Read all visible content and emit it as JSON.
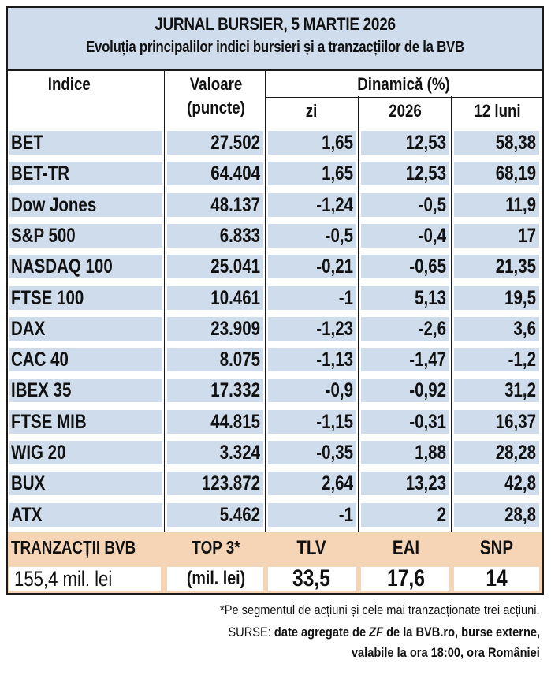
{
  "header": {
    "title": "JURNAL BURSIER, 5 MARTIE 2026",
    "subtitle": "Evoluția principalilor indici bursieri și a tranzacțiilor de la BVB"
  },
  "columns": {
    "indice": "Indice",
    "valoare_1": "Valoare",
    "valoare_2": "(puncte)",
    "dinamica": "Dinamică (%)",
    "zi": "zi",
    "an": "2026",
    "luni": "12 luni"
  },
  "rows": [
    {
      "name": "BET",
      "value": "27.502",
      "day": "1,65",
      "ytd": "12,53",
      "m12": "58,38"
    },
    {
      "name": "BET-TR",
      "value": "64.404",
      "day": "1,65",
      "ytd": "12,53",
      "m12": "68,19"
    },
    {
      "name": "Dow Jones",
      "value": "48.137",
      "day": "-1,24",
      "ytd": "-0,5",
      "m12": "11,9"
    },
    {
      "name": "S&P 500",
      "value": "6.833",
      "day": "-0,5",
      "ytd": "-0,4",
      "m12": "17"
    },
    {
      "name": "NASDAQ 100",
      "value": "25.041",
      "day": "-0,21",
      "ytd": "-0,65",
      "m12": "21,35"
    },
    {
      "name": "FTSE 100",
      "value": "10.461",
      "day": "-1",
      "ytd": "5,13",
      "m12": "19,5"
    },
    {
      "name": "DAX",
      "value": "23.909",
      "day": "-1,23",
      "ytd": "-2,6",
      "m12": "3,6"
    },
    {
      "name": "CAC 40",
      "value": "8.075",
      "day": "-1,13",
      "ytd": "-1,47",
      "m12": "-1,2"
    },
    {
      "name": "IBEX 35",
      "value": "17.332",
      "day": "-0,9",
      "ytd": "-0,92",
      "m12": "31,2"
    },
    {
      "name": "FTSE MIB",
      "value": "44.815",
      "day": "-1,15",
      "ytd": "-0,31",
      "m12": "16,37"
    },
    {
      "name": "WIG 20",
      "value": "3.324",
      "day": "-0,35",
      "ytd": "1,88",
      "m12": "28,28"
    },
    {
      "name": "BUX",
      "value": "123.872",
      "day": "2,64",
      "ytd": "13,23",
      "m12": "42,8"
    },
    {
      "name": "ATX",
      "value": "5.462",
      "day": "-1",
      "ytd": "2",
      "m12": "28,8"
    }
  ],
  "tranzactii": {
    "label": "TRANZACȚII BVB",
    "total": "155,4 mil. lei",
    "top_label": "TOP 3*",
    "top_unit": "(mil. lei)",
    "stocks": [
      {
        "symbol": "TLV",
        "value": "33,5"
      },
      {
        "symbol": "EAI",
        "value": "17,6"
      },
      {
        "symbol": "SNP",
        "value": "14"
      }
    ]
  },
  "footer": {
    "note": "*Pe segmentul de acțiuni și cele mai tranzacționate trei acțiuni.",
    "sources_prefix": "SURSE: ",
    "sources_a": "date agregate de ",
    "sources_zf": "ZF",
    "sources_b": " de la BVB.ro, burse externe,",
    "sources_line2": "valabile la ora 18:00, ora României"
  }
}
